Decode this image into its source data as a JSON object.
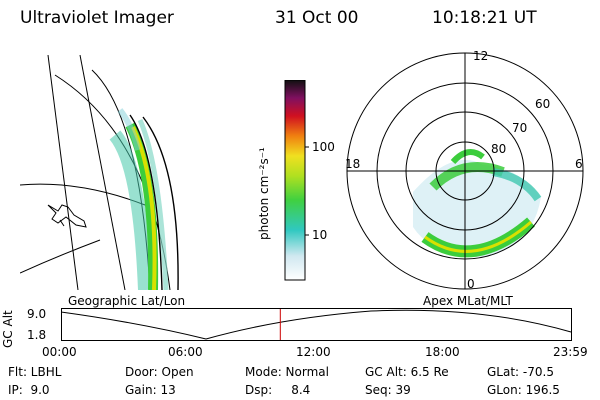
{
  "header": {
    "instrument": "Ultraviolet Imager",
    "date": "31 Oct 00",
    "time": "10:18:21 UT"
  },
  "colorbar": {
    "unit_label": "photon cm⁻²s⁻¹",
    "ticks": [
      "100",
      "10"
    ]
  },
  "polar_plot": {
    "mlt_labels": [
      "12",
      "18",
      "6",
      "0"
    ],
    "lat_labels": [
      "60",
      "70",
      "80"
    ]
  },
  "map_labels": {
    "left": "Geographic Lat/Lon",
    "right": "Apex MLat/MLT"
  },
  "altitude_strip": {
    "axis_label": "GC Alt",
    "y_ticks": [
      "9.0",
      "1.8"
    ],
    "x_ticks": [
      "00:00",
      "06:00",
      "12:00",
      "18:00",
      "23:59"
    ],
    "current_time_fraction": 0.43
  },
  "info": {
    "filter": "Flt: LBHL",
    "ip": "IP:  9.0",
    "door": "Door: Open",
    "gain": "Gain: 13",
    "mode": "Mode: Normal",
    "dsp": "Dsp:     8.4",
    "gc_alt": "GC Alt: 6.5 Re",
    "seq": "Seq: 39",
    "glat": "GLat: -70.5",
    "glon": "GLon: 196.5"
  },
  "colors": {
    "time_marker": "#cc0000",
    "aurora_green": "#3ccd3c",
    "aurora_yellow": "#d8e000"
  }
}
